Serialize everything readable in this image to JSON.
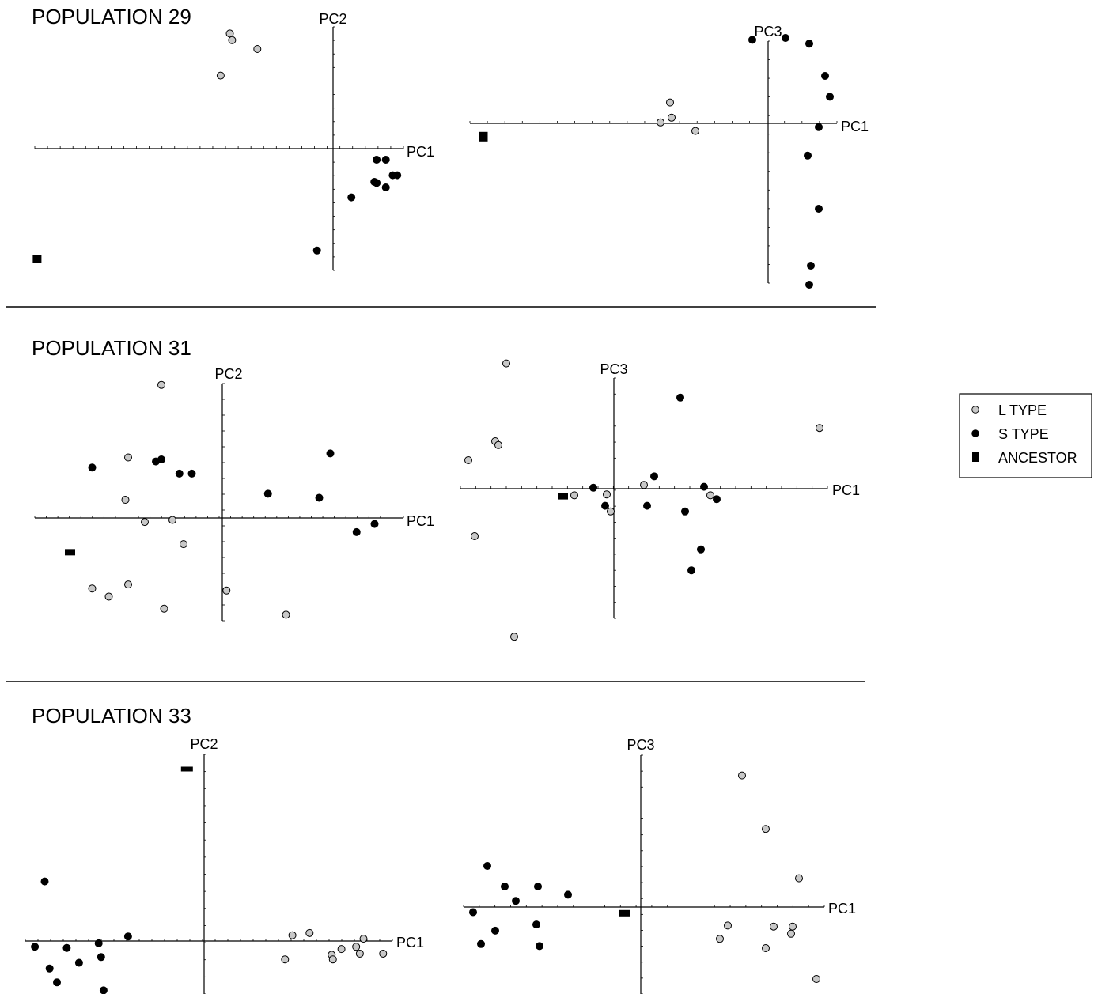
{
  "colors": {
    "L TYPE": "#c8c8c8",
    "S TYPE": "#000000",
    "ANCESTOR": "#000000"
  },
  "legend": {
    "items": [
      {
        "label": "L TYPE",
        "marker": "circle-gray"
      },
      {
        "label": "S TYPE",
        "marker": "circle-black"
      },
      {
        "label": "ANCESTOR",
        "marker": "square-black"
      }
    ]
  },
  "populations": [
    {
      "title": "POPULATION 29"
    },
    {
      "title": "POPULATION 31"
    },
    {
      "title": "POPULATION 33"
    }
  ],
  "chart_data": [
    {
      "type": "scatter",
      "population": "POPULATION 29",
      "xlabel": "PC1",
      "ylabel": "PC2",
      "x_ticks": 29,
      "y_ticks": 18,
      "grid": false,
      "series": [
        {
          "name": "L TYPE",
          "points": [
            [
              -4.5,
              5.2
            ],
            [
              -4.4,
              4.9
            ],
            [
              -3.3,
              4.5
            ],
            [
              -4.9,
              3.3
            ]
          ]
        },
        {
          "name": "S TYPE",
          "points": [
            [
              1.9,
              -0.5
            ],
            [
              2.3,
              -0.5
            ],
            [
              1.8,
              -1.5
            ],
            [
              1.9,
              -1.55
            ],
            [
              2.6,
              -1.2
            ],
            [
              2.8,
              -1.2
            ],
            [
              2.3,
              -1.75
            ],
            [
              0.8,
              -2.2
            ],
            [
              -0.7,
              -4.6
            ]
          ]
        },
        {
          "name": "ANCESTOR",
          "points": [
            [
              -12.9,
              -5.0
            ]
          ]
        }
      ]
    },
    {
      "type": "scatter",
      "population": "POPULATION 29",
      "xlabel": "PC1",
      "ylabel": "PC3",
      "x_ticks": 21,
      "y_ticks": 13,
      "grid": false,
      "series": [
        {
          "name": "L TYPE",
          "points": [
            [
              -3.1,
              1.1
            ],
            [
              -3.05,
              0.3
            ],
            [
              -3.4,
              0.05
            ],
            [
              -2.3,
              -0.4
            ]
          ]
        },
        {
          "name": "S TYPE",
          "points": [
            [
              -0.5,
              4.4
            ],
            [
              0.55,
              4.5
            ],
            [
              1.3,
              4.2
            ],
            [
              1.8,
              2.5
            ],
            [
              1.95,
              1.4
            ],
            [
              1.6,
              -0.2
            ],
            [
              1.25,
              -1.7
            ],
            [
              1.6,
              -4.5
            ],
            [
              1.35,
              -7.5
            ],
            [
              1.3,
              -8.5
            ]
          ]
        },
        {
          "name": "ANCESTOR",
          "points": [
            [
              -9.0,
              -0.7
            ]
          ]
        }
      ]
    },
    {
      "type": "scatter",
      "population": "POPULATION 31",
      "xlabel": "PC1",
      "ylabel": "PC2",
      "x_ticks": 32,
      "y_ticks": 15,
      "grid": false,
      "series": [
        {
          "name": "L TYPE",
          "points": [
            [
              -2.2,
              3.3
            ],
            [
              -3.4,
              1.5
            ],
            [
              -3.5,
              0.45
            ],
            [
              -2.8,
              -0.1
            ],
            [
              -1.8,
              -0.05
            ],
            [
              -1.4,
              -0.65
            ],
            [
              -4.7,
              -1.75
            ],
            [
              -4.1,
              -1.95
            ],
            [
              -3.4,
              -1.65
            ],
            [
              -2.1,
              -2.25
            ],
            [
              0.15,
              -1.8
            ],
            [
              2.3,
              -2.4
            ]
          ]
        },
        {
          "name": "S TYPE",
          "points": [
            [
              -4.7,
              1.25
            ],
            [
              -2.4,
              1.4
            ],
            [
              -2.2,
              1.45
            ],
            [
              -1.55,
              1.1
            ],
            [
              -1.1,
              1.1
            ],
            [
              1.65,
              0.6
            ],
            [
              3.5,
              0.5
            ],
            [
              3.9,
              1.6
            ],
            [
              4.85,
              -0.35
            ],
            [
              5.5,
              -0.15
            ]
          ]
        },
        {
          "name": "ANCESTOR",
          "points": [
            [
              -5.5,
              -0.85
            ]
          ]
        }
      ]
    },
    {
      "type": "scatter",
      "population": "POPULATION 31",
      "xlabel": "PC1",
      "ylabel": "PC3",
      "x_ticks": 24,
      "y_ticks": 15,
      "grid": false,
      "series": [
        {
          "name": "L TYPE",
          "points": [
            [
              -6.8,
              6.6
            ],
            [
              -7.5,
              2.5
            ],
            [
              -7.3,
              2.3
            ],
            [
              -9.2,
              1.5
            ],
            [
              -8.8,
              -2.5
            ],
            [
              -6.3,
              -7.8
            ],
            [
              -2.5,
              -0.35
            ],
            [
              -0.45,
              -0.3
            ],
            [
              -0.2,
              -1.2
            ],
            [
              1.9,
              0.2
            ],
            [
              6.1,
              -0.35
            ],
            [
              13.0,
              3.2
            ]
          ]
        },
        {
          "name": "S TYPE",
          "points": [
            [
              4.2,
              4.8
            ],
            [
              2.55,
              0.65
            ],
            [
              -1.3,
              0.05
            ],
            [
              -0.55,
              -0.9
            ],
            [
              2.1,
              -0.9
            ],
            [
              5.7,
              0.1
            ],
            [
              6.5,
              -0.55
            ],
            [
              4.5,
              -1.2
            ],
            [
              5.5,
              -3.2
            ],
            [
              4.9,
              -4.3
            ]
          ]
        },
        {
          "name": "ANCESTOR",
          "points": [
            [
              -3.2,
              -0.4
            ]
          ]
        }
      ]
    },
    {
      "type": "scatter",
      "population": "POPULATION 33",
      "xlabel": "PC1",
      "ylabel": "PC2",
      "x_ticks": 29,
      "y_ticks": 14,
      "grid": false,
      "series": [
        {
          "name": "L TYPE",
          "points": [
            [
              3.6,
              0.25
            ],
            [
              4.3,
              0.35
            ],
            [
              3.3,
              -0.8
            ],
            [
              5.2,
              -0.6
            ],
            [
              5.25,
              -0.8
            ],
            [
              5.6,
              -0.35
            ],
            [
              6.2,
              -0.25
            ],
            [
              6.5,
              0.1
            ],
            [
              6.35,
              -0.55
            ],
            [
              7.3,
              -0.55
            ]
          ]
        },
        {
          "name": "S TYPE",
          "points": [
            [
              -6.5,
              2.6
            ],
            [
              -3.1,
              0.2
            ],
            [
              -4.3,
              -0.1
            ],
            [
              -6.9,
              -0.25
            ],
            [
              -5.6,
              -0.3
            ],
            [
              -4.2,
              -0.7
            ],
            [
              -5.1,
              -0.95
            ],
            [
              -6.3,
              -1.2
            ],
            [
              -6.0,
              -1.8
            ],
            [
              -4.1,
              -2.15
            ]
          ]
        },
        {
          "name": "ANCESTOR",
          "points": [
            [
              -0.7,
              7.5
            ]
          ]
        }
      ]
    },
    {
      "type": "scatter",
      "population": "POPULATION 33",
      "xlabel": "PC1",
      "ylabel": "PC3",
      "x_ticks": 23,
      "y_ticks": 15,
      "grid": false,
      "series": [
        {
          "name": "L TYPE",
          "points": [
            [
              6.4,
              6.4
            ],
            [
              7.9,
              3.8
            ],
            [
              10.0,
              1.4
            ],
            [
              5.5,
              -0.9
            ],
            [
              5.0,
              -1.55
            ],
            [
              8.4,
              -0.95
            ],
            [
              9.6,
              -0.95
            ],
            [
              9.5,
              -1.3
            ],
            [
              7.9,
              -2.0
            ],
            [
              11.1,
              -3.5
            ]
          ]
        },
        {
          "name": "S TYPE",
          "points": [
            [
              -9.7,
              2.0
            ],
            [
              -8.6,
              1.0
            ],
            [
              -6.5,
              1.0
            ],
            [
              -4.6,
              0.6
            ],
            [
              -7.9,
              0.3
            ],
            [
              -10.6,
              -0.25
            ],
            [
              -9.2,
              -1.15
            ],
            [
              -6.6,
              -0.85
            ],
            [
              -10.1,
              -1.8
            ],
            [
              -6.4,
              -1.9
            ]
          ]
        },
        {
          "name": "ANCESTOR",
          "points": [
            [
              -1.0,
              -0.3
            ]
          ]
        }
      ]
    }
  ]
}
